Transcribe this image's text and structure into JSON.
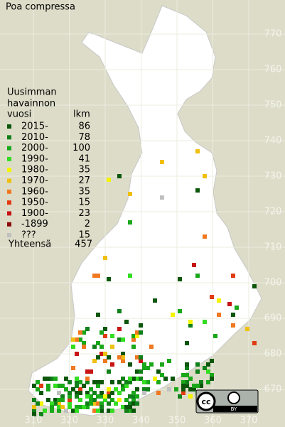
{
  "title": "Poa compressa",
  "legend": {
    "header": [
      "Uusimman",
      "havainnon",
      "vuosi"
    ],
    "count_header": "lkm",
    "rows": [
      {
        "label": "2015-",
        "count": 86,
        "color": "#0b560b"
      },
      {
        "label": "2010-",
        "count": 78,
        "color": "#11801a"
      },
      {
        "label": "2000-",
        "count": 100,
        "color": "#1aa81a"
      },
      {
        "label": "1990-",
        "count": 41,
        "color": "#33dd22"
      },
      {
        "label": "1980-",
        "count": 35,
        "color": "#f4f400"
      },
      {
        "label": "1970-",
        "count": 27,
        "color": "#f0c010"
      },
      {
        "label": "1960-",
        "count": 35,
        "color": "#f07820"
      },
      {
        "label": "1950-",
        "count": 15,
        "color": "#e23a10"
      },
      {
        "label": "1900-",
        "count": 23,
        "color": "#c81414"
      },
      {
        "label": "-1899",
        "count": 2,
        "color": "#8c0a0a"
      },
      {
        "label": "???",
        "count": 15,
        "color": "#c0c0c0"
      }
    ],
    "total_label": "Yhteensä",
    "total": 457
  },
  "axes": {
    "x_ticks": [
      310,
      320,
      330,
      340,
      350,
      360,
      370
    ],
    "y_ticks": [
      670,
      680,
      690,
      700,
      710,
      720,
      730,
      740,
      750,
      760,
      770
    ]
  },
  "license": "BY"
}
